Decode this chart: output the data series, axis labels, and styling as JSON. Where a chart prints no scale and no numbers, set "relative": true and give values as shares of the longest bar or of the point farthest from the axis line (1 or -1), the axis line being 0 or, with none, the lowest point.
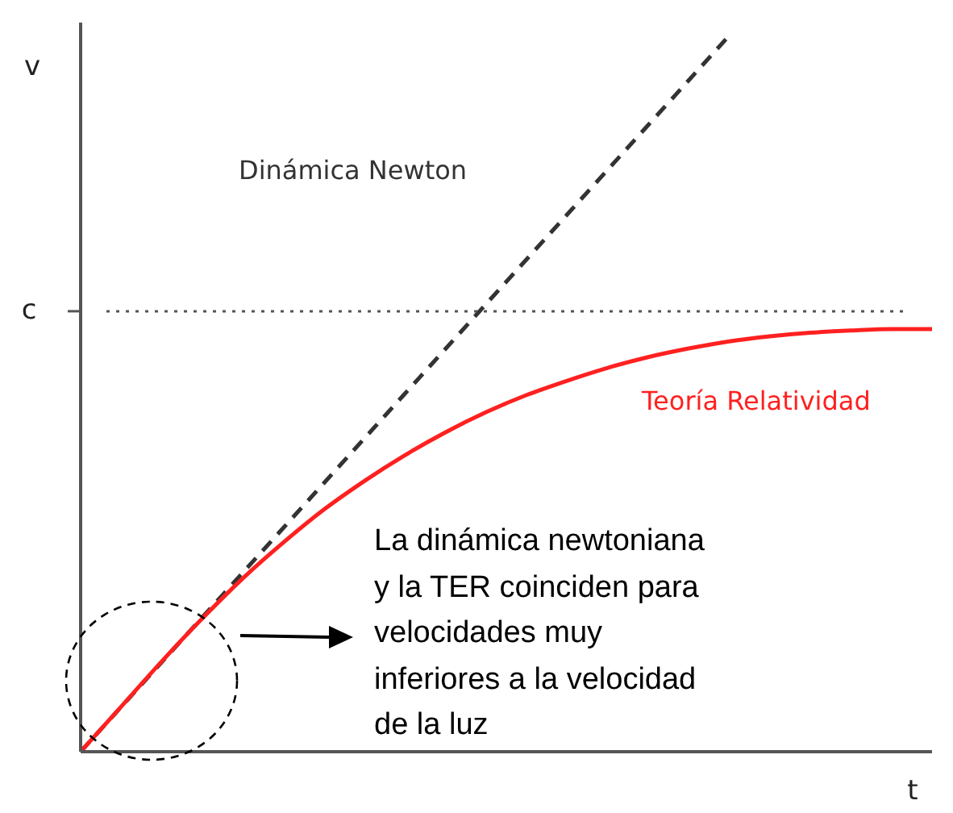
{
  "chart_data": {
    "type": "line",
    "relative": true,
    "xlabel": "t",
    "ylabel": "v",
    "categories": [
      null,
      null,
      null,
      null,
      null,
      null,
      null,
      null,
      null,
      null,
      null,
      null,
      null,
      null,
      null,
      null,
      null,
      null,
      null,
      null,
      null,
      null
    ],
    "series": [
      {
        "name": "Dinámica Newton",
        "color": "#333333",
        "line_style": "dashed",
        "values": [
          0,
          0.0625,
          0.125,
          0.1875,
          0.25,
          0.3125,
          0.375,
          0.4375,
          0.5,
          0.5625,
          0.625,
          0.6875,
          0.75,
          0.8125,
          0.875,
          0.9375,
          1,
          null,
          null,
          null,
          null,
          null
        ]
      },
      {
        "name": "Teoría Relatividad",
        "color": "#ff2020",
        "line_style": "solid",
        "values": [
          0,
          0.063,
          0.126,
          0.186,
          0.242,
          0.292,
          0.338,
          0.378,
          0.414,
          0.446,
          0.474,
          0.498,
          0.518,
          0.536,
          0.551,
          0.563,
          0.573,
          0.58,
          0.585,
          0.588,
          0.59,
          0.59
        ]
      }
    ],
    "ref_lines": [
      {
        "axis": "y",
        "value": 0.615,
        "label": "c",
        "color": "#555555",
        "line_style": "dotted"
      }
    ],
    "marker": "none",
    "legend": false,
    "annotations": [
      "La dinámica newtoniana y la TER coinciden para velocidades muy inferiores a la velocidad de la luz"
    ]
  }
}
